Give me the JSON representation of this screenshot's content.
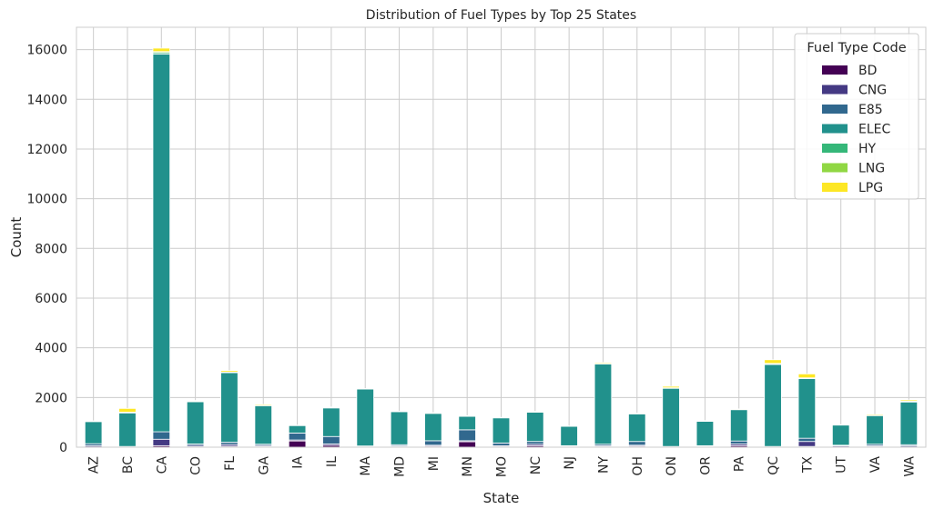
{
  "chart_data": {
    "type": "bar",
    "stacked": true,
    "title": "Distribution of Fuel Types by Top 25 States",
    "xlabel": "State",
    "ylabel": "Count",
    "ylim": [
      0,
      16900
    ],
    "yticks": [
      0,
      2000,
      4000,
      6000,
      8000,
      10000,
      12000,
      14000,
      16000
    ],
    "grid": true,
    "legend_title": "Fuel Type Code",
    "legend_position": "top-right",
    "categories": [
      "AZ",
      "BC",
      "CA",
      "CO",
      "FL",
      "GA",
      "IA",
      "IL",
      "MA",
      "MD",
      "MI",
      "MN",
      "MO",
      "NC",
      "NJ",
      "NY",
      "OH",
      "ON",
      "OR",
      "PA",
      "QC",
      "TX",
      "UT",
      "VA",
      "WA"
    ],
    "series": [
      {
        "name": "BD",
        "color": "#440154",
        "values": [
          10,
          0,
          60,
          20,
          40,
          30,
          250,
          70,
          10,
          20,
          40,
          220,
          20,
          60,
          10,
          20,
          40,
          0,
          10,
          60,
          0,
          30,
          10,
          20,
          10
        ]
      },
      {
        "name": "CNG",
        "color": "#443983",
        "values": [
          50,
          10,
          260,
          50,
          70,
          40,
          40,
          60,
          20,
          30,
          40,
          40,
          40,
          60,
          30,
          40,
          40,
          10,
          20,
          70,
          10,
          200,
          40,
          40,
          40
        ]
      },
      {
        "name": "E85",
        "color": "#31688e",
        "values": [
          80,
          20,
          300,
          60,
          90,
          50,
          280,
          300,
          20,
          50,
          180,
          440,
          110,
          110,
          20,
          60,
          150,
          20,
          30,
          120,
          20,
          130,
          30,
          60,
          50
        ]
      },
      {
        "name": "ELEC",
        "color": "#21918c",
        "values": [
          890,
          1350,
          15200,
          1700,
          2800,
          1550,
          300,
          1150,
          2290,
          1330,
          1100,
          540,
          1010,
          1180,
          780,
          3230,
          1110,
          2340,
          980,
          1260,
          3300,
          2400,
          810,
          1150,
          1720
        ]
      },
      {
        "name": "HY",
        "color": "#35b779",
        "values": [
          10,
          20,
          60,
          10,
          10,
          10,
          0,
          0,
          0,
          0,
          0,
          0,
          0,
          0,
          0,
          10,
          0,
          10,
          10,
          0,
          20,
          10,
          0,
          0,
          20
        ]
      },
      {
        "name": "LNG",
        "color": "#90d743",
        "values": [
          0,
          10,
          40,
          10,
          10,
          0,
          0,
          10,
          0,
          0,
          0,
          0,
          0,
          0,
          0,
          10,
          0,
          10,
          0,
          0,
          20,
          20,
          0,
          0,
          10
        ]
      },
      {
        "name": "LPG",
        "color": "#fde725",
        "values": [
          20,
          150,
          140,
          30,
          60,
          40,
          20,
          30,
          20,
          20,
          30,
          30,
          20,
          30,
          10,
          40,
          30,
          60,
          20,
          30,
          150,
          160,
          20,
          40,
          50
        ]
      }
    ]
  }
}
